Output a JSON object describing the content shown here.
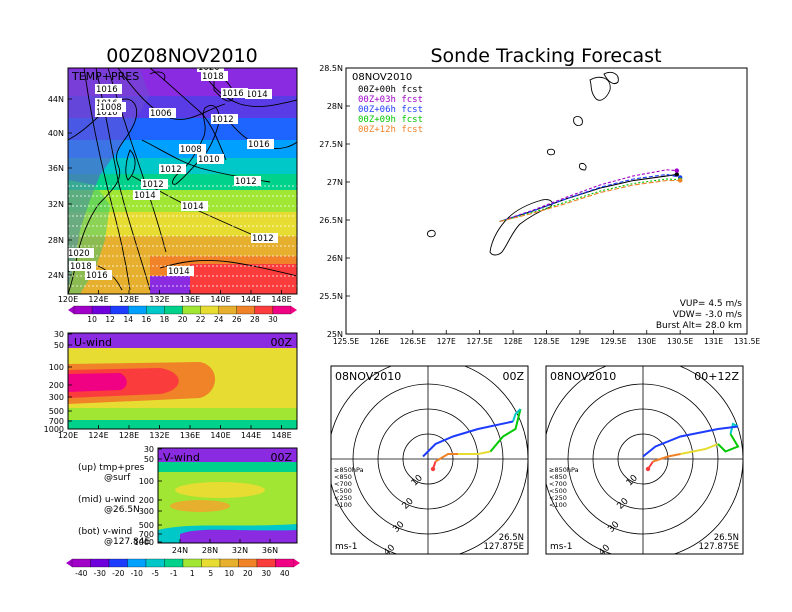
{
  "titles": {
    "left": "00Z08NOV2010",
    "right": "Sonde Tracking Forecast"
  },
  "tp_panel": {
    "label": "TEMP+PRES",
    "isobars": [
      "1020",
      "1018",
      "1016",
      "1016",
      "1010",
      "1008",
      "1006",
      "1012",
      "1014",
      "1016",
      "1008",
      "1010",
      "1012",
      "1012",
      "1014",
      "1014",
      "1016",
      "1012",
      "1012",
      "1020",
      "1018",
      "1016",
      "1014"
    ],
    "lat_ticks": [
      "44N",
      "40N",
      "36N",
      "32N",
      "28N",
      "24N"
    ],
    "lon_ticks": [
      "120E",
      "124E",
      "128E",
      "132E",
      "136E",
      "140E",
      "144E",
      "148E"
    ],
    "colorbar_labels": [
      "10",
      "12",
      "14",
      "16",
      "18",
      "20",
      "22",
      "24",
      "26",
      "28",
      "30"
    ],
    "colorbar_colors": [
      "#a000c8",
      "#6e00dc",
      "#1e3cff",
      "#00a0ff",
      "#00c8c8",
      "#00d28c",
      "#a0e632",
      "#e6dc32",
      "#e6af2d",
      "#f08228",
      "#fa3c3c",
      "#f00082"
    ]
  },
  "u_panel": {
    "label": "U-wind",
    "time": "00Z",
    "p_ticks": [
      "30",
      "50",
      "100",
      "200",
      "300",
      "500",
      "700",
      "1000"
    ],
    "lon_ticks": [
      "120E",
      "124E",
      "128E",
      "132E",
      "136E",
      "140E",
      "144E",
      "148E"
    ]
  },
  "v_panel": {
    "label": "V-wind",
    "time": "00Z",
    "p_ticks": [
      "30",
      "50",
      "100",
      "200",
      "300",
      "500",
      "700",
      "1000"
    ],
    "lat_ticks": [
      "24N",
      "28N",
      "32N",
      "36N"
    ]
  },
  "legend_notes": {
    "up_line1": "(up) tmp+pres",
    "up_line2": "@surf",
    "mid_line1": "(mid) u-wind",
    "mid_line2": "@26.5N",
    "bot_line1": "(bot) v-wind",
    "bot_line2": "@127.84E"
  },
  "wind_colorbar": {
    "labels": [
      "-40",
      "-30",
      "-20",
      "-10",
      "-5",
      "-1",
      "1",
      "5",
      "10",
      "20",
      "30",
      "40"
    ],
    "colors": [
      "#a000c8",
      "#6e00dc",
      "#1e3cff",
      "#00a0ff",
      "#00c8c8",
      "#00d28c",
      "#a0e632",
      "#e6dc32",
      "#e6af2d",
      "#f08228",
      "#fa3c3c",
      "#f00082"
    ]
  },
  "track_panel": {
    "date": "08NOV2010",
    "lat_ticks": [
      "28.5N",
      "28N",
      "27.5N",
      "27N",
      "26.5N",
      "26N",
      "25.5N",
      "25N"
    ],
    "lon_ticks": [
      "125.5E",
      "126E",
      "126.5E",
      "127E",
      "127.5E",
      "128E",
      "128.5E",
      "129E",
      "129.5E",
      "130E",
      "130.5E",
      "131E",
      "131.5E"
    ],
    "legend": [
      {
        "label": "00Z+00h fcst",
        "color": "#000000"
      },
      {
        "label": "00Z+03h fcst",
        "color": "#a000c8"
      },
      {
        "label": "00Z+06h fcst",
        "color": "#1e3cff"
      },
      {
        "label": "00Z+09h fcst",
        "color": "#00c800"
      },
      {
        "label": "00Z+12h fcst",
        "color": "#f08228"
      }
    ],
    "vup": "VUP= 4.5 m/s",
    "vdw": "VDW= -3.0 m/s",
    "burst": "Burst Alt= 28.0 km"
  },
  "hodo_left": {
    "date": "08NOV2010",
    "time": "00Z",
    "ring_labels": [
      "10",
      "20",
      "30",
      "40"
    ],
    "pressure_legend": [
      "≥850hPa",
      "<850",
      "<700",
      "<500",
      "<250",
      "<100"
    ],
    "pressure_colors": [
      "#fa3c3c",
      "#f08228",
      "#e6dc32",
      "#00c800",
      "#00c8c8",
      "#1e3cff"
    ],
    "unit": "ms-1",
    "loc_lat": "26.5N",
    "loc_lon": "127.875E"
  },
  "hodo_right": {
    "date": "08NOV2010",
    "time": "00+12Z",
    "ring_labels": [
      "10",
      "20",
      "30",
      "40"
    ],
    "pressure_legend": [
      "≥850hPa",
      "<850",
      "<700",
      "<500",
      "<250",
      "<100"
    ],
    "pressure_colors": [
      "#fa3c3c",
      "#f08228",
      "#e6dc32",
      "#00c800",
      "#00c8c8",
      "#1e3cff"
    ],
    "unit": "ms-1",
    "loc_lat": "26.5N",
    "loc_lon": "127.875E"
  },
  "chart_data": [
    {
      "type": "heatmap",
      "title": "TEMP+PRES",
      "xlim": [
        "120E",
        "150E"
      ],
      "ylim": [
        "22N",
        "47N"
      ],
      "variable": "surface temperature (shaded) with sea-level pressure contours (hPa)",
      "colorbar": [
        "10",
        "12",
        "14",
        "16",
        "18",
        "20",
        "22",
        "24",
        "26",
        "28",
        "30"
      ]
    },
    {
      "type": "heatmap",
      "title": "U-wind",
      "x_ticks": [
        "120E",
        "124E",
        "128E",
        "132E",
        "136E",
        "140E",
        "144E",
        "148E"
      ],
      "y_ticks": [
        "30",
        "50",
        "100",
        "200",
        "300",
        "500",
        "700",
        "1000"
      ],
      "section": "@26.5N"
    },
    {
      "type": "heatmap",
      "title": "V-wind",
      "x_ticks": [
        "24N",
        "28N",
        "32N",
        "36N"
      ],
      "y_ticks": [
        "30",
        "50",
        "100",
        "200",
        "300",
        "500",
        "700",
        "1000"
      ],
      "section": "@127.84E"
    },
    {
      "type": "line",
      "title": "Sonde Tracking Forecast",
      "xlim": [
        125.5,
        131.5
      ],
      "ylim": [
        25,
        28.5
      ],
      "series": [
        {
          "name": "00Z+00h fcst",
          "x": [
            127.8,
            128.3,
            128.8,
            129.3,
            129.8,
            130.3,
            130.45
          ],
          "y": [
            26.48,
            26.62,
            26.78,
            26.92,
            27.02,
            27.08,
            27.1
          ]
        },
        {
          "name": "00Z+03h fcst",
          "x": [
            127.8,
            128.3,
            128.8,
            129.3,
            129.8,
            130.3,
            130.45
          ],
          "y": [
            26.48,
            26.63,
            26.8,
            26.96,
            27.08,
            27.16,
            27.15
          ]
        },
        {
          "name": "00Z+06h fcst",
          "x": [
            127.8,
            128.3,
            128.8,
            129.3,
            129.8,
            130.3,
            130.5
          ],
          "y": [
            26.48,
            26.62,
            26.78,
            26.93,
            27.04,
            27.1,
            27.06
          ]
        },
        {
          "name": "00Z+09h fcst",
          "x": [
            127.8,
            128.3,
            128.8,
            129.3,
            129.8,
            130.3,
            130.5
          ],
          "y": [
            26.48,
            26.6,
            26.74,
            26.88,
            26.98,
            27.04,
            27.03
          ]
        },
        {
          "name": "00Z+12h fcst",
          "x": [
            127.8,
            128.3,
            128.8,
            129.3,
            129.8,
            130.3,
            130.5
          ],
          "y": [
            26.48,
            26.59,
            26.72,
            26.86,
            26.96,
            27.02,
            27.02
          ]
        }
      ]
    },
    {
      "type": "scatter",
      "title": "08NOV2010 00Z",
      "variable": "hodograph (u, v) in ms-1",
      "series": [
        {
          "name": "≥850hPa",
          "u": [
            2,
            3
          ],
          "v": [
            -4,
            -1
          ]
        },
        {
          "name": "<850",
          "u": [
            3,
            8,
            12
          ],
          "v": [
            -1,
            2,
            2
          ]
        },
        {
          "name": "<700",
          "u": [
            12,
            20,
            25
          ],
          "v": [
            2,
            2,
            3
          ]
        },
        {
          "name": "<500",
          "u": [
            25,
            30,
            35,
            37
          ],
          "v": [
            3,
            9,
            12,
            20
          ]
        },
        {
          "name": "<250",
          "u": [
            37,
            35,
            34
          ],
          "v": [
            20,
            18,
            15
          ]
        },
        {
          "name": "<100",
          "u": [
            34,
            20,
            10,
            3,
            -2
          ],
          "v": [
            15,
            12,
            9,
            6,
            1
          ]
        }
      ]
    },
    {
      "type": "scatter",
      "title": "08NOV2010 00+12Z",
      "variable": "hodograph (u, v) in ms-1",
      "series": [
        {
          "name": "≥850hPa",
          "u": [
            2,
            4
          ],
          "v": [
            -4,
            -1
          ]
        },
        {
          "name": "<850",
          "u": [
            4,
            10,
            15
          ],
          "v": [
            -1,
            1,
            2
          ]
        },
        {
          "name": "<700",
          "u": [
            15,
            25,
            30
          ],
          "v": [
            2,
            4,
            6
          ]
        },
        {
          "name": "<500",
          "u": [
            30,
            33,
            38,
            35
          ],
          "v": [
            6,
            3,
            5,
            10
          ]
        },
        {
          "name": "<250",
          "u": [
            35,
            36,
            38
          ],
          "v": [
            10,
            14,
            13
          ]
        },
        {
          "name": "<100",
          "u": [
            38,
            30,
            15,
            5,
            0
          ],
          "v": [
            13,
            12,
            9,
            5,
            1
          ]
        }
      ]
    }
  ]
}
